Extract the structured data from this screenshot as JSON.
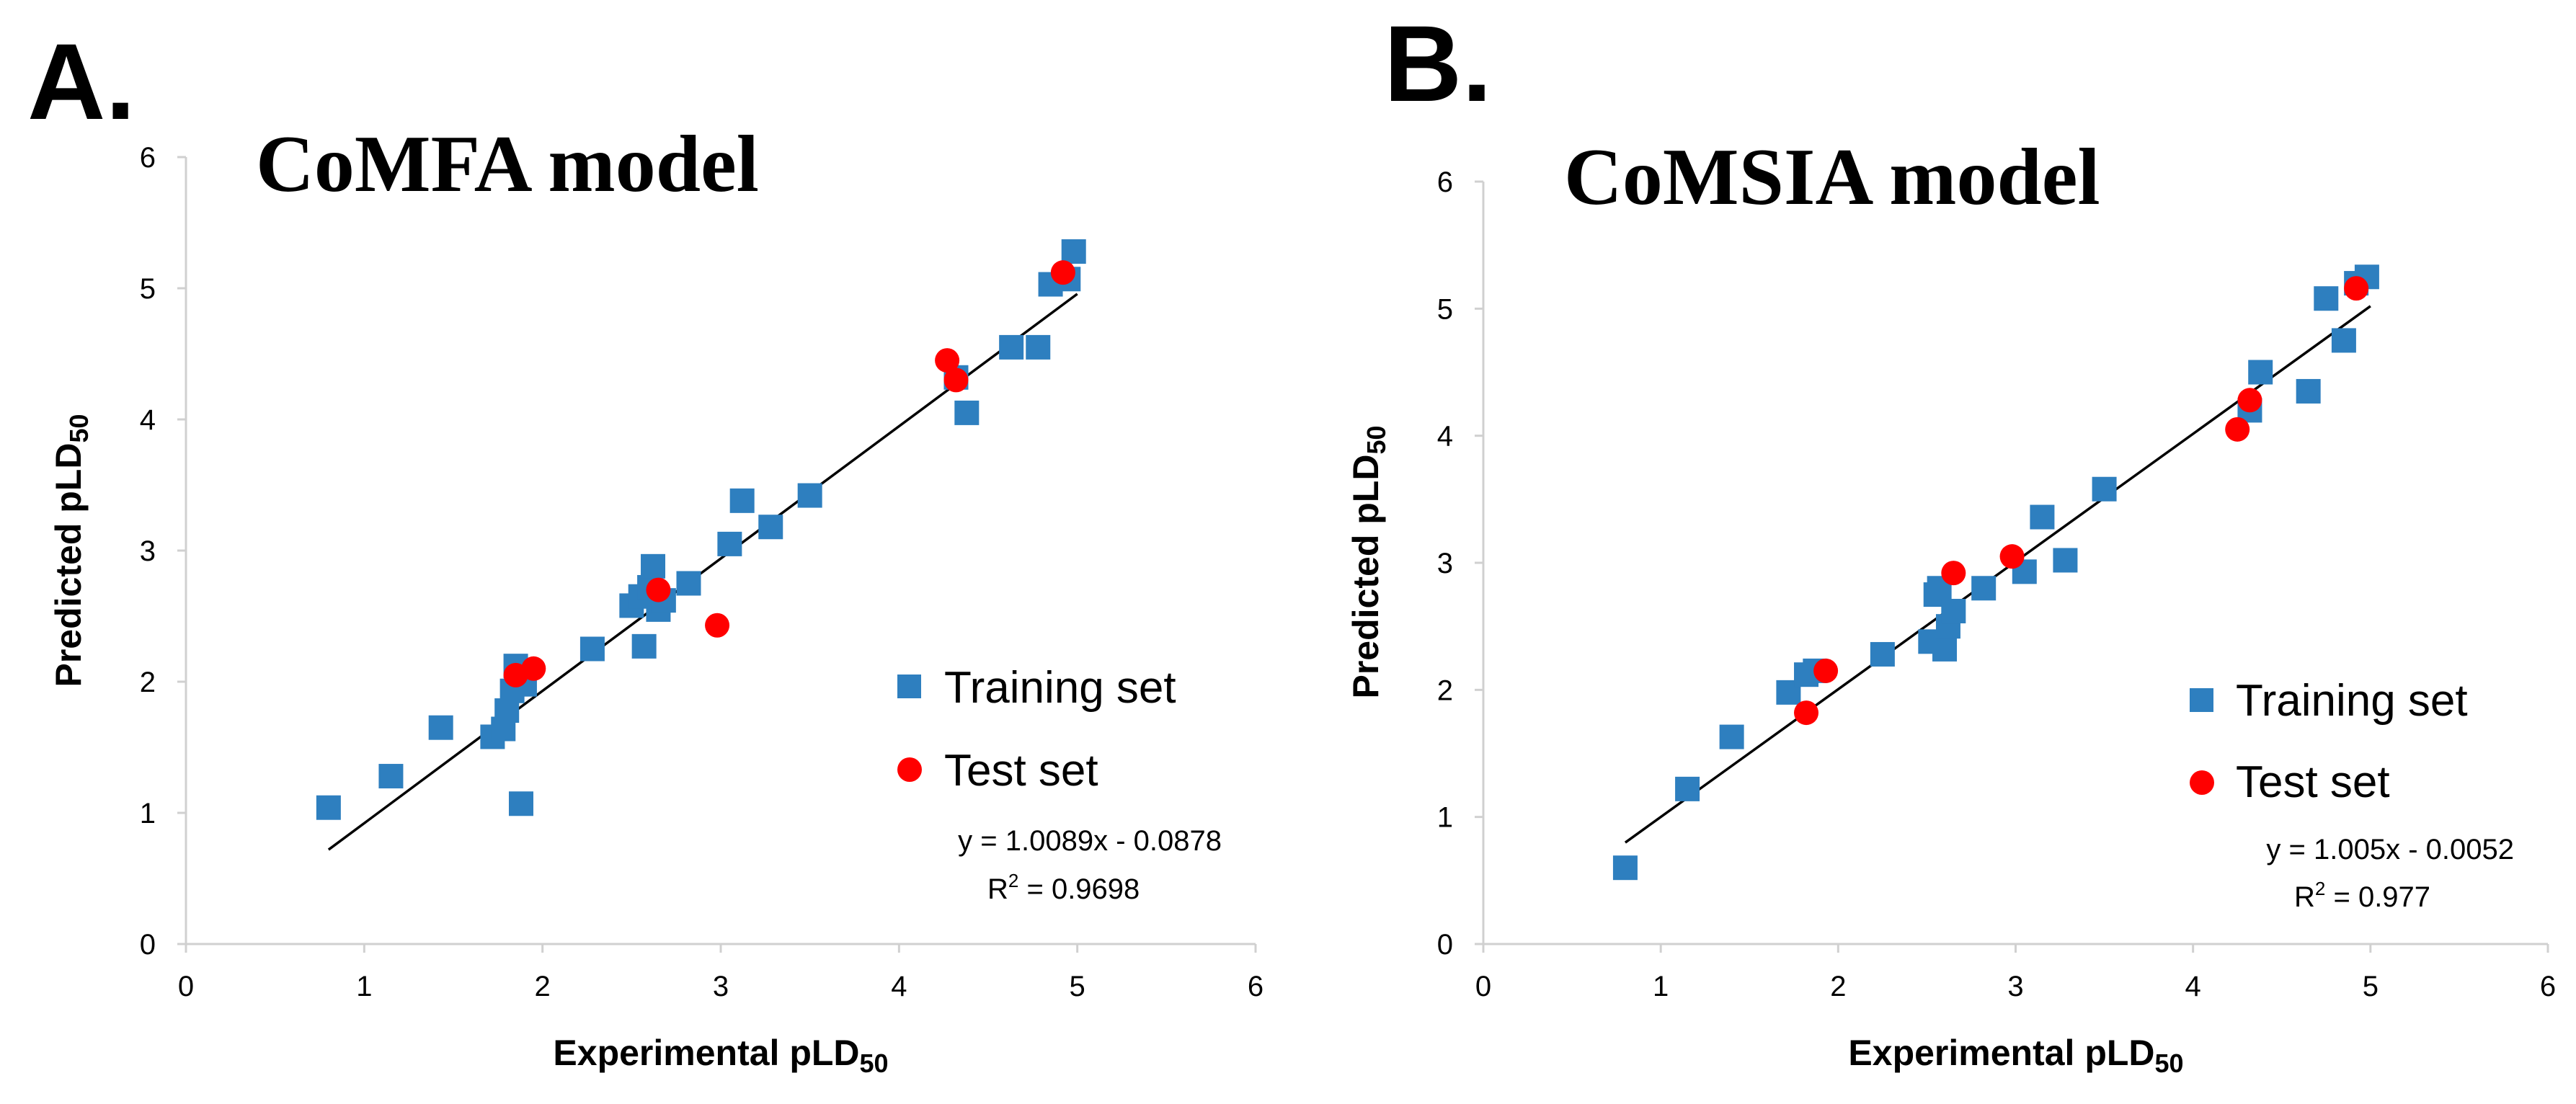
{
  "chart_data": [
    {
      "type": "scatter",
      "panel_label": "A.",
      "title": "CoMFA model",
      "xlabel": "Experimental pLD",
      "xlabel_sub": "50",
      "ylabel": "Predicted pLD",
      "ylabel_sub": "50",
      "xlim": [
        0,
        6
      ],
      "ylim": [
        0,
        6
      ],
      "xticks": [
        "0",
        "1",
        "2",
        "3",
        "4",
        "5",
        "6"
      ],
      "yticks": [
        "0",
        "1",
        "2",
        "3",
        "4",
        "5",
        "6"
      ],
      "grid": false,
      "legend_position": "bottom-right",
      "series": [
        {
          "name": "Training set",
          "marker": "square",
          "color": "#2E7FBF",
          "points": [
            [
              0.8,
              1.04
            ],
            [
              1.15,
              1.28
            ],
            [
              1.43,
              1.65
            ],
            [
              1.72,
              1.58
            ],
            [
              1.78,
              1.64
            ],
            [
              1.8,
              1.78
            ],
            [
              1.83,
              1.93
            ],
            [
              1.85,
              2.12
            ],
            [
              1.88,
              1.07
            ],
            [
              1.9,
              1.98
            ],
            [
              2.28,
              2.25
            ],
            [
              2.5,
              2.58
            ],
            [
              2.55,
              2.65
            ],
            [
              2.57,
              2.27
            ],
            [
              2.6,
              2.72
            ],
            [
              2.62,
              2.88
            ],
            [
              2.65,
              2.55
            ],
            [
              2.68,
              2.62
            ],
            [
              2.82,
              2.75
            ],
            [
              3.05,
              3.05
            ],
            [
              3.12,
              3.38
            ],
            [
              3.28,
              3.18
            ],
            [
              3.5,
              3.42
            ],
            [
              4.32,
              4.32
            ],
            [
              4.38,
              4.05
            ],
            [
              4.63,
              4.55
            ],
            [
              4.78,
              4.55
            ],
            [
              4.85,
              5.03
            ],
            [
              4.95,
              5.07
            ],
            [
              4.98,
              5.28
            ]
          ]
        },
        {
          "name": "Test set",
          "marker": "circle",
          "color": "#FF0000",
          "points": [
            [
              1.85,
              2.05
            ],
            [
              1.95,
              2.1
            ],
            [
              2.65,
              2.7
            ],
            [
              2.98,
              2.43
            ],
            [
              4.27,
              4.45
            ],
            [
              4.32,
              4.3
            ],
            [
              4.92,
              5.12
            ]
          ]
        }
      ],
      "trendline": {
        "slope": 1.0089,
        "intercept": -0.0878,
        "x_range": [
          0.8,
          5.0
        ]
      },
      "equation": "y = 1.0089x - 0.0878",
      "r2_prefix": "R",
      "r2_sup": "2",
      "r2_value": " = 0.9698"
    },
    {
      "type": "scatter",
      "panel_label": "B.",
      "title": "CoMSIA model",
      "xlabel": "Experimental pLD",
      "xlabel_sub": "50",
      "ylabel": "Predicted pLD",
      "ylabel_sub": "50",
      "xlim": [
        0,
        6
      ],
      "ylim": [
        0,
        6
      ],
      "xticks": [
        "0",
        "1",
        "2",
        "3",
        "4",
        "5",
        "6"
      ],
      "yticks": [
        "0",
        "1",
        "2",
        "3",
        "4",
        "5",
        "6"
      ],
      "grid": false,
      "legend_position": "bottom-right",
      "series": [
        {
          "name": "Training set",
          "marker": "square",
          "color": "#2E7FBF",
          "points": [
            [
              0.8,
              0.6
            ],
            [
              1.15,
              1.22
            ],
            [
              1.4,
              1.63
            ],
            [
              1.72,
              1.98
            ],
            [
              1.82,
              2.12
            ],
            [
              1.87,
              2.15
            ],
            [
              2.25,
              2.28
            ],
            [
              2.52,
              2.38
            ],
            [
              2.55,
              2.75
            ],
            [
              2.57,
              2.8
            ],
            [
              2.6,
              2.32
            ],
            [
              2.62,
              2.5
            ],
            [
              2.65,
              2.62
            ],
            [
              2.82,
              2.8
            ],
            [
              3.05,
              2.93
            ],
            [
              3.15,
              3.36
            ],
            [
              3.28,
              3.02
            ],
            [
              3.5,
              3.58
            ],
            [
              4.32,
              4.2
            ],
            [
              4.38,
              4.5
            ],
            [
              4.65,
              4.35
            ],
            [
              4.75,
              5.08
            ],
            [
              4.85,
              4.75
            ],
            [
              4.92,
              5.2
            ],
            [
              4.98,
              5.25
            ]
          ]
        },
        {
          "name": "Test set",
          "marker": "circle",
          "color": "#FF0000",
          "points": [
            [
              1.82,
              1.82
            ],
            [
              1.93,
              2.15
            ],
            [
              2.65,
              2.92
            ],
            [
              2.98,
              3.05
            ],
            [
              4.25,
              4.05
            ],
            [
              4.32,
              4.28
            ],
            [
              4.92,
              5.16
            ]
          ]
        }
      ],
      "trendline": {
        "slope": 1.005,
        "intercept": -0.0052,
        "x_range": [
          0.8,
          5.0
        ]
      },
      "equation": "y = 1.005x - 0.0052",
      "r2_prefix": "R",
      "r2_sup": "2",
      "r2_value": " = 0.977"
    }
  ]
}
